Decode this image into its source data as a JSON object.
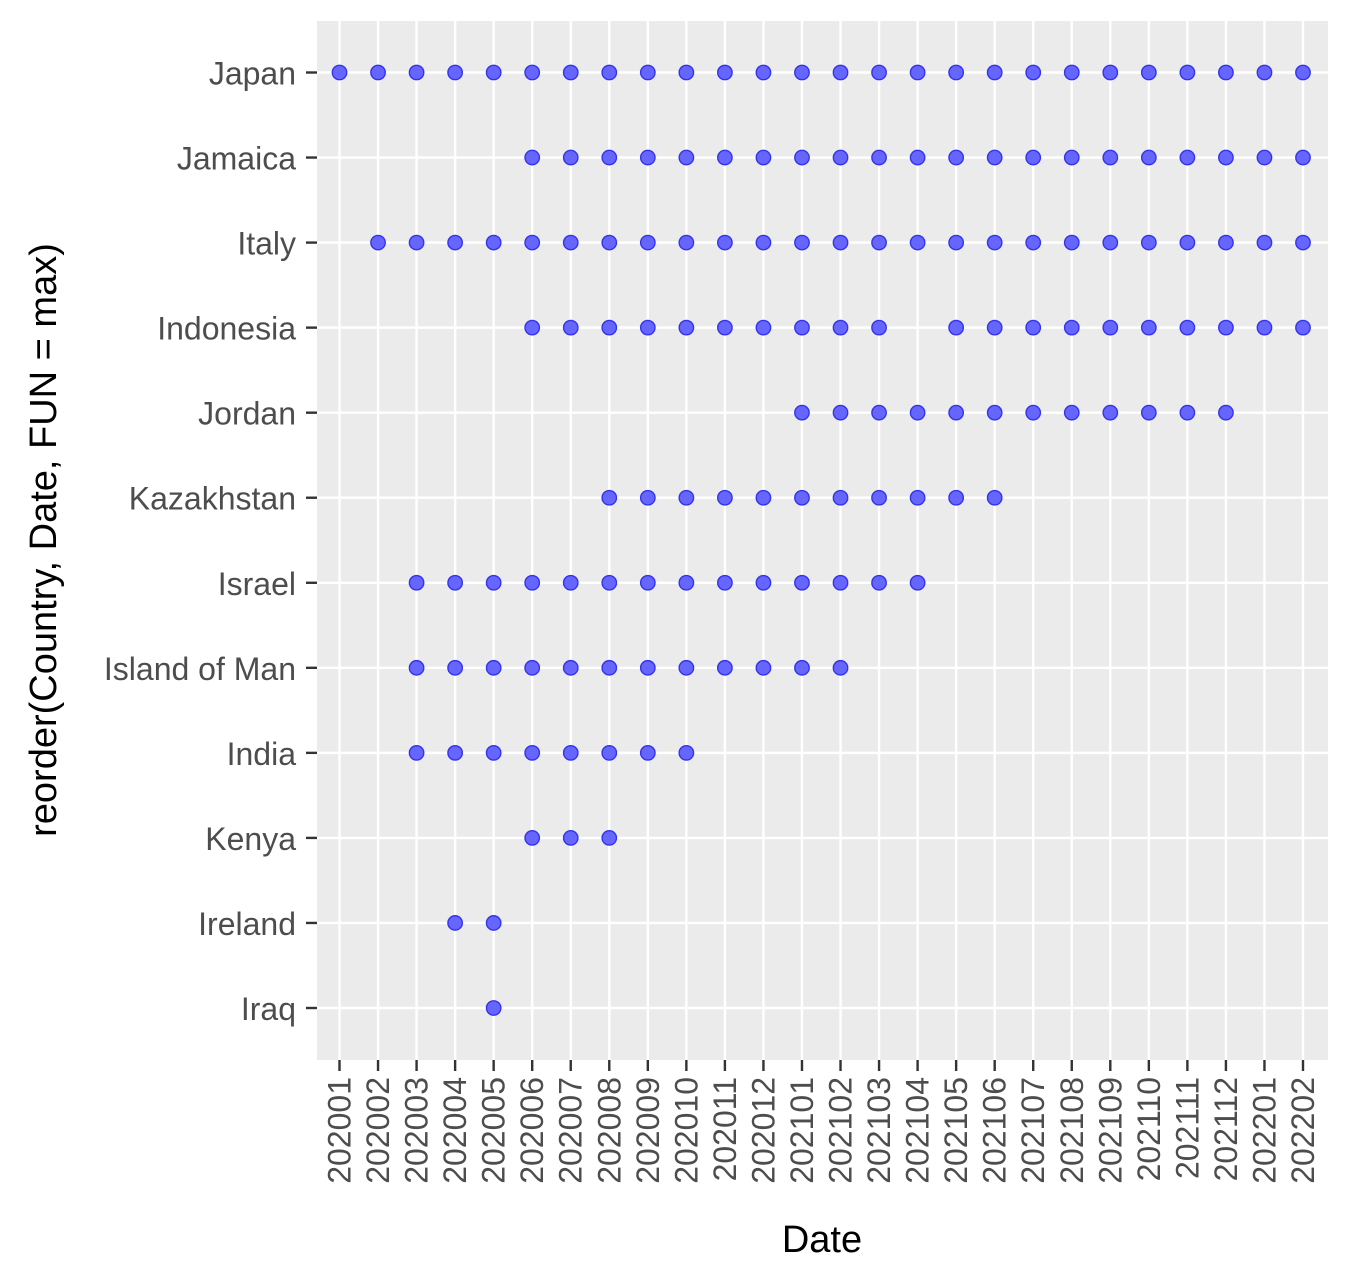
{
  "chart_data": {
    "type": "scatter",
    "title": "",
    "xlabel": "Date",
    "ylabel": "reorder(Country, Date, FUN = max)",
    "categories_x": [
      "202001",
      "202002",
      "202003",
      "202004",
      "202005",
      "202006",
      "202007",
      "202008",
      "202009",
      "202010",
      "202011",
      "202012",
      "202101",
      "202102",
      "202103",
      "202104",
      "202105",
      "202106",
      "202107",
      "202108",
      "202109",
      "202110",
      "202111",
      "202112",
      "202201",
      "202202"
    ],
    "categories_y": [
      "Japan",
      "Jamaica",
      "Italy",
      "Indonesia",
      "Jordan",
      "Kazakhstan",
      "Israel",
      "Island of Man",
      "India",
      "Kenya",
      "Ireland",
      "Iraq"
    ],
    "grid": true,
    "legend": "none",
    "point_color": "#6666FF",
    "point_stroke": "#3333EE",
    "panel_background": "#EBEBEB",
    "points": [
      {
        "country": "Japan",
        "dates": [
          "202001",
          "202002",
          "202003",
          "202004",
          "202005",
          "202006",
          "202007",
          "202008",
          "202009",
          "202010",
          "202011",
          "202012",
          "202101",
          "202102",
          "202103",
          "202104",
          "202105",
          "202106",
          "202107",
          "202108",
          "202109",
          "202110",
          "202111",
          "202112",
          "202201",
          "202202"
        ]
      },
      {
        "country": "Jamaica",
        "dates": [
          "202006",
          "202007",
          "202008",
          "202009",
          "202010",
          "202011",
          "202012",
          "202101",
          "202102",
          "202103",
          "202104",
          "202105",
          "202106",
          "202107",
          "202108",
          "202109",
          "202110",
          "202111",
          "202112",
          "202201",
          "202202"
        ]
      },
      {
        "country": "Italy",
        "dates": [
          "202002",
          "202003",
          "202004",
          "202005",
          "202006",
          "202007",
          "202008",
          "202009",
          "202010",
          "202011",
          "202012",
          "202101",
          "202102",
          "202103",
          "202104",
          "202105",
          "202106",
          "202107",
          "202108",
          "202109",
          "202110",
          "202111",
          "202112",
          "202201",
          "202202"
        ]
      },
      {
        "country": "Indonesia",
        "dates": [
          "202006",
          "202007",
          "202008",
          "202009",
          "202010",
          "202011",
          "202012",
          "202101",
          "202102",
          "202103",
          "202105",
          "202106",
          "202107",
          "202108",
          "202109",
          "202110",
          "202111",
          "202112",
          "202201",
          "202202"
        ]
      },
      {
        "country": "Jordan",
        "dates": [
          "202101",
          "202102",
          "202103",
          "202104",
          "202105",
          "202106",
          "202107",
          "202108",
          "202109",
          "202110",
          "202111",
          "202112"
        ]
      },
      {
        "country": "Kazakhstan",
        "dates": [
          "202008",
          "202009",
          "202010",
          "202011",
          "202012",
          "202101",
          "202102",
          "202103",
          "202104",
          "202105",
          "202106"
        ]
      },
      {
        "country": "Israel",
        "dates": [
          "202003",
          "202004",
          "202005",
          "202006",
          "202007",
          "202008",
          "202009",
          "202010",
          "202011",
          "202012",
          "202101",
          "202102",
          "202103",
          "202104"
        ]
      },
      {
        "country": "Island of Man",
        "dates": [
          "202003",
          "202004",
          "202005",
          "202006",
          "202007",
          "202008",
          "202009",
          "202010",
          "202011",
          "202012",
          "202101",
          "202102"
        ]
      },
      {
        "country": "India",
        "dates": [
          "202003",
          "202004",
          "202005",
          "202006",
          "202007",
          "202008",
          "202009",
          "202010"
        ]
      },
      {
        "country": "Kenya",
        "dates": [
          "202006",
          "202007",
          "202008"
        ]
      },
      {
        "country": "Ireland",
        "dates": [
          "202004",
          "202005"
        ]
      },
      {
        "country": "Iraq",
        "dates": [
          "202005"
        ]
      }
    ]
  }
}
